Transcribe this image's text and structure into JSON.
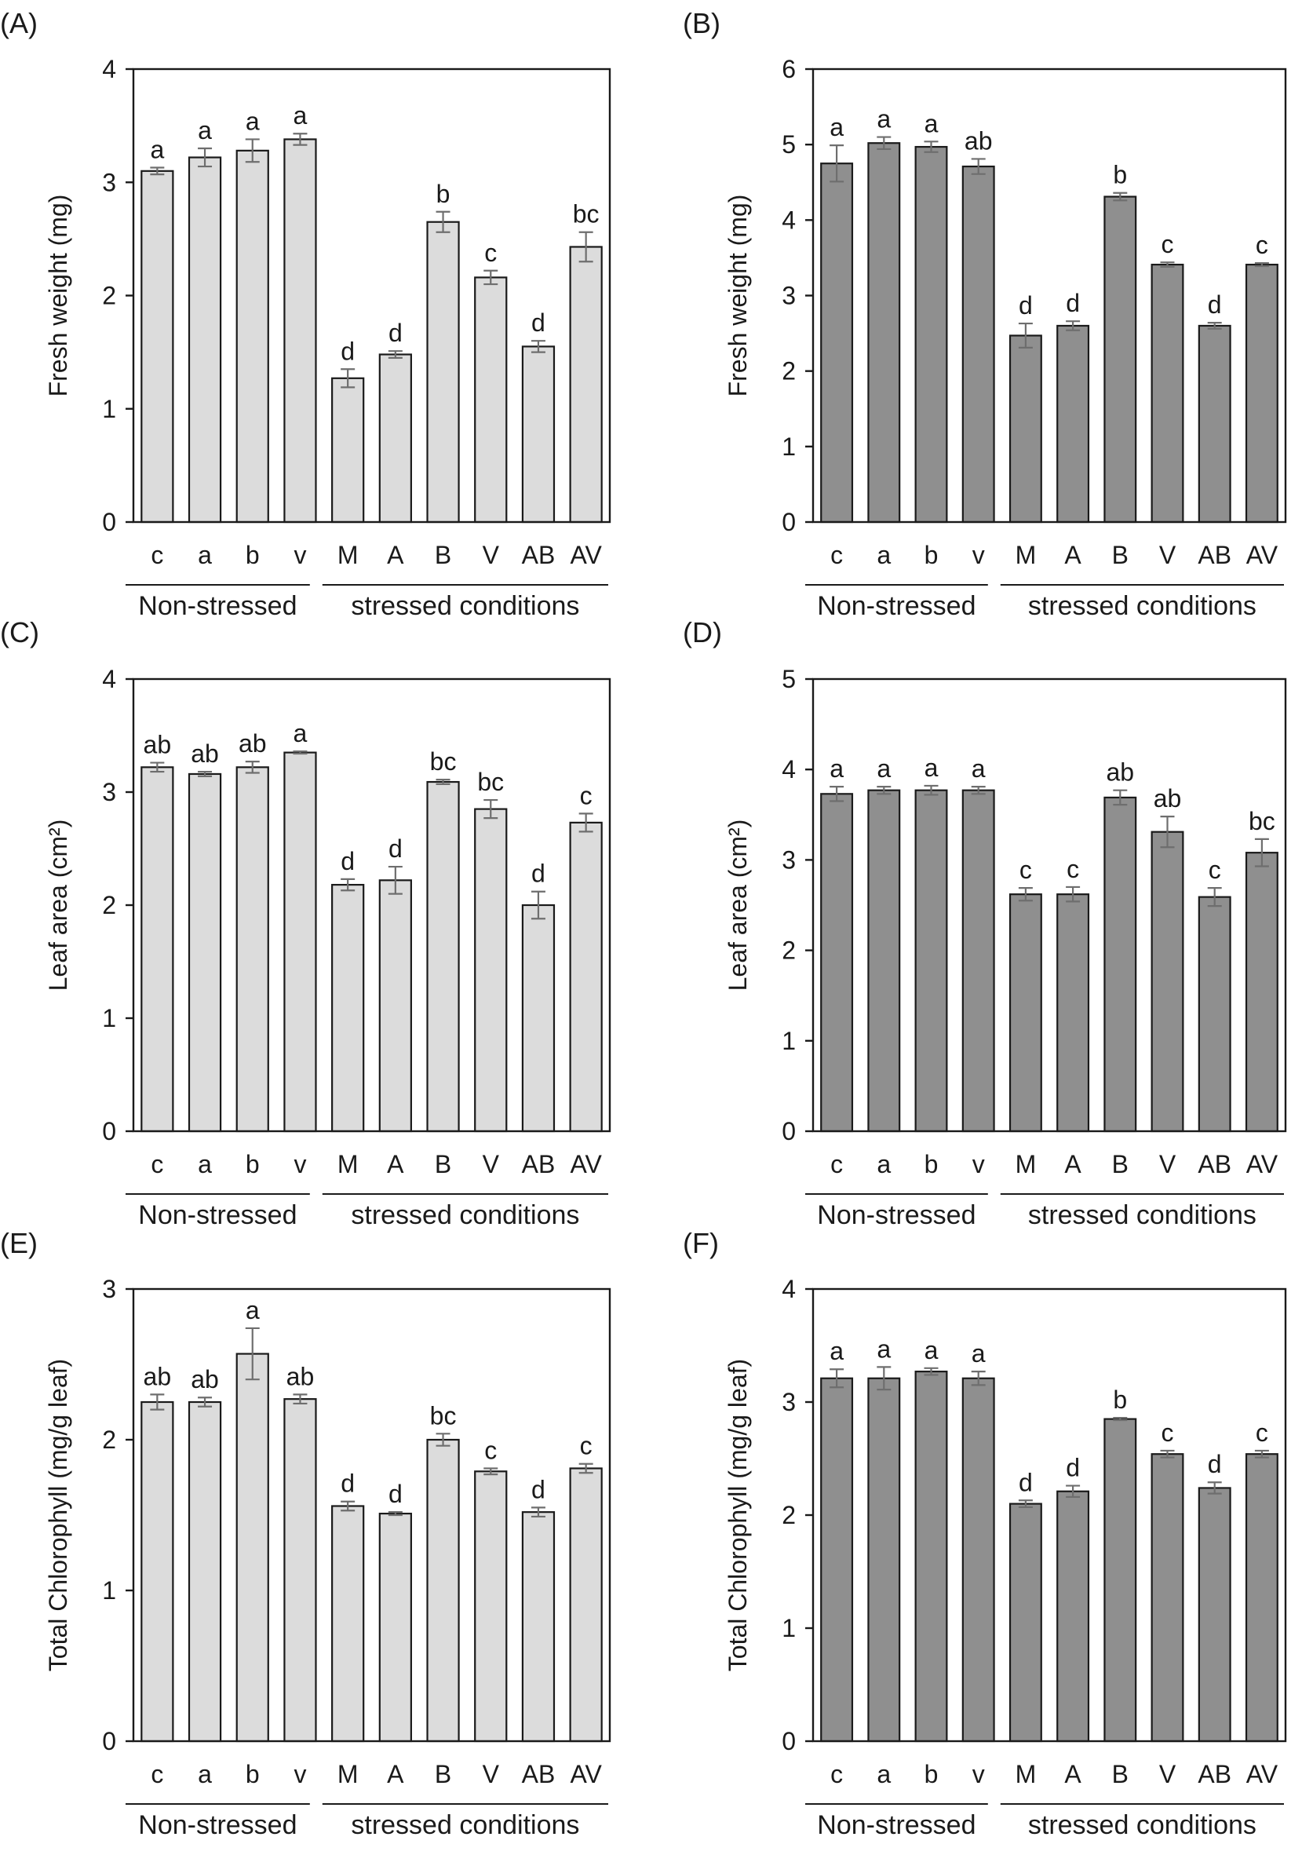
{
  "colors": {
    "light_bar": "#dcdcdc",
    "dark_bar": "#8f8f8f",
    "error_bar": "#6e6e6e",
    "axis": "#1a1a1a"
  },
  "chart_data": [
    {
      "type": "bar",
      "panel": "(A)",
      "ylabel": "Fresh weight (mg)",
      "ylim": [
        0,
        4
      ],
      "yticks": [
        "0",
        "1",
        "2",
        "3",
        "4"
      ],
      "categories": [
        "c",
        "a",
        "b",
        "v",
        "M",
        "A",
        "B",
        "V",
        "AB",
        "AV"
      ],
      "values": [
        3.1,
        3.22,
        3.28,
        3.38,
        1.27,
        1.48,
        2.65,
        2.16,
        1.55,
        2.43
      ],
      "errors": [
        0.03,
        0.08,
        0.1,
        0.05,
        0.08,
        0.03,
        0.09,
        0.06,
        0.05,
        0.13
      ],
      "letters": [
        "a",
        "a",
        "a",
        "a",
        "d",
        "d",
        "b",
        "c",
        "d",
        "bc"
      ],
      "groups": [
        "Non-stressed",
        "stressed conditions"
      ],
      "bar_color": "light"
    },
    {
      "type": "bar",
      "panel": "(B)",
      "ylabel": "Fresh weight (mg)",
      "ylim": [
        0,
        6
      ],
      "yticks": [
        "0",
        "1",
        "2",
        "3",
        "4",
        "5",
        "6"
      ],
      "categories": [
        "c",
        "a",
        "b",
        "v",
        "M",
        "A",
        "B",
        "V",
        "AB",
        "AV"
      ],
      "values": [
        4.75,
        5.02,
        4.97,
        4.71,
        2.47,
        2.6,
        4.31,
        3.41,
        2.6,
        3.41
      ],
      "errors": [
        0.24,
        0.08,
        0.07,
        0.1,
        0.16,
        0.06,
        0.05,
        0.03,
        0.04,
        0.02
      ],
      "letters": [
        "a",
        "a",
        "a",
        "ab",
        "d",
        "d",
        "b",
        "c",
        "d",
        "c"
      ],
      "groups": [
        "Non-stressed",
        "stressed conditions"
      ],
      "bar_color": "dark"
    },
    {
      "type": "bar",
      "panel": "(C)",
      "ylabel": "Leaf area (cm²)",
      "ylim": [
        0,
        4
      ],
      "yticks": [
        "0",
        "1",
        "2",
        "3",
        "4"
      ],
      "categories": [
        "c",
        "a",
        "b",
        "v",
        "M",
        "A",
        "B",
        "V",
        "AB",
        "AV"
      ],
      "values": [
        3.22,
        3.16,
        3.22,
        3.35,
        2.18,
        2.22,
        3.09,
        2.85,
        2.0,
        2.73
      ],
      "errors": [
        0.04,
        0.02,
        0.05,
        0.01,
        0.05,
        0.12,
        0.02,
        0.08,
        0.12,
        0.08
      ],
      "letters": [
        "ab",
        "ab",
        "ab",
        "a",
        "d",
        "d",
        "bc",
        "bc",
        "d",
        "c"
      ],
      "groups": [
        "Non-stressed",
        "stressed conditions"
      ],
      "bar_color": "light"
    },
    {
      "type": "bar",
      "panel": "(D)",
      "ylabel": "Leaf area (cm²)",
      "ylim": [
        0,
        5
      ],
      "yticks": [
        "0",
        "1",
        "2",
        "3",
        "4",
        "5"
      ],
      "categories": [
        "c",
        "a",
        "b",
        "v",
        "M",
        "A",
        "B",
        "V",
        "AB",
        "AV"
      ],
      "values": [
        3.73,
        3.77,
        3.77,
        3.77,
        2.62,
        2.62,
        3.69,
        3.31,
        2.59,
        3.08
      ],
      "errors": [
        0.08,
        0.04,
        0.05,
        0.04,
        0.07,
        0.08,
        0.08,
        0.17,
        0.1,
        0.15
      ],
      "letters": [
        "a",
        "a",
        "a",
        "a",
        "c",
        "c",
        "ab",
        "ab",
        "c",
        "bc"
      ],
      "groups": [
        "Non-stressed",
        "stressed conditions"
      ],
      "bar_color": "dark"
    },
    {
      "type": "bar",
      "panel": "(E)",
      "ylabel": "Total Chlorophyll (mg/g leaf)",
      "ylim": [
        0,
        3
      ],
      "yticks": [
        "0",
        "1",
        "2",
        "3"
      ],
      "categories": [
        "c",
        "a",
        "b",
        "v",
        "M",
        "A",
        "B",
        "V",
        "AB",
        "AV"
      ],
      "values": [
        2.25,
        2.25,
        2.57,
        2.27,
        1.56,
        1.51,
        2.0,
        1.79,
        1.52,
        1.81
      ],
      "errors": [
        0.05,
        0.03,
        0.17,
        0.03,
        0.03,
        0.01,
        0.04,
        0.02,
        0.03,
        0.03
      ],
      "letters": [
        "ab",
        "ab",
        "a",
        "ab",
        "d",
        "d",
        "bc",
        "c",
        "d",
        "c"
      ],
      "groups": [
        "Non-stressed",
        "stressed conditions"
      ],
      "bar_color": "light"
    },
    {
      "type": "bar",
      "panel": "(F)",
      "ylabel": "Total Chlorophyll (mg/g leaf)",
      "ylim": [
        0,
        4
      ],
      "yticks": [
        "0",
        "1",
        "2",
        "3",
        "4"
      ],
      "categories": [
        "c",
        "a",
        "b",
        "v",
        "M",
        "A",
        "B",
        "V",
        "AB",
        "AV"
      ],
      "values": [
        3.21,
        3.21,
        3.27,
        3.21,
        2.1,
        2.21,
        2.85,
        2.54,
        2.24,
        2.54
      ],
      "errors": [
        0.08,
        0.1,
        0.03,
        0.06,
        0.03,
        0.05,
        0.01,
        0.03,
        0.05,
        0.03
      ],
      "letters": [
        "a",
        "a",
        "a",
        "a",
        "d",
        "d",
        "b",
        "c",
        "d",
        "c"
      ],
      "groups": [
        "Non-stressed",
        "stressed conditions"
      ],
      "bar_color": "dark"
    }
  ]
}
